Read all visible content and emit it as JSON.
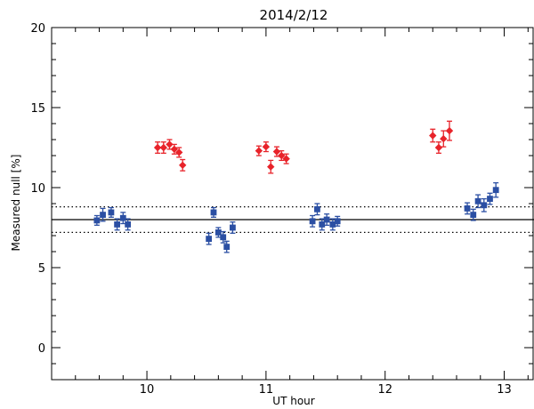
{
  "chart_data": {
    "type": "scatter",
    "title": "2014/2/12",
    "xlabel": "UT hour",
    "ylabel": "Measured null [%]",
    "xlim": [
      9.2,
      13.25
    ],
    "ylim": [
      -2,
      20
    ],
    "x_ticks": [
      10,
      11,
      12,
      13
    ],
    "x_tick_labels": [
      "10",
      "11",
      "12",
      "13"
    ],
    "y_ticks": [
      0,
      5,
      10,
      15,
      20
    ],
    "y_tick_labels": [
      "0",
      "5",
      "10",
      "15",
      "20"
    ],
    "grid": false,
    "reference_lines": [
      {
        "y": 8.0,
        "style": "solid"
      },
      {
        "y": 8.8,
        "style": "dotted"
      },
      {
        "y": 7.2,
        "style": "dotted"
      }
    ],
    "series": [
      {
        "color": "#e8232a",
        "marker": "diamond",
        "points": [
          {
            "x": 10.09,
            "y": 12.5,
            "err": 0.35
          },
          {
            "x": 10.14,
            "y": 12.5,
            "err": 0.35
          },
          {
            "x": 10.19,
            "y": 12.7,
            "err": 0.3
          },
          {
            "x": 10.23,
            "y": 12.4,
            "err": 0.3
          },
          {
            "x": 10.27,
            "y": 12.2,
            "err": 0.3
          },
          {
            "x": 10.3,
            "y": 11.4,
            "err": 0.35
          },
          {
            "x": 10.94,
            "y": 12.3,
            "err": 0.3
          },
          {
            "x": 11.0,
            "y": 12.55,
            "err": 0.3
          },
          {
            "x": 11.04,
            "y": 11.3,
            "err": 0.4
          },
          {
            "x": 11.09,
            "y": 12.25,
            "err": 0.3
          },
          {
            "x": 11.13,
            "y": 12.0,
            "err": 0.3
          },
          {
            "x": 11.17,
            "y": 11.8,
            "err": 0.3
          },
          {
            "x": 12.4,
            "y": 13.25,
            "err": 0.4
          },
          {
            "x": 12.45,
            "y": 12.5,
            "err": 0.35
          },
          {
            "x": 12.49,
            "y": 13.05,
            "err": 0.5
          },
          {
            "x": 12.54,
            "y": 13.55,
            "err": 0.6
          }
        ]
      },
      {
        "color": "#2b4fa3",
        "marker": "square",
        "points": [
          {
            "x": 9.58,
            "y": 7.95,
            "err": 0.3
          },
          {
            "x": 9.63,
            "y": 8.3,
            "err": 0.4
          },
          {
            "x": 9.7,
            "y": 8.45,
            "err": 0.3
          },
          {
            "x": 9.75,
            "y": 7.7,
            "err": 0.35
          },
          {
            "x": 9.8,
            "y": 8.1,
            "err": 0.35
          },
          {
            "x": 9.84,
            "y": 7.7,
            "err": 0.35
          },
          {
            "x": 10.52,
            "y": 6.8,
            "err": 0.35
          },
          {
            "x": 10.56,
            "y": 8.45,
            "err": 0.3
          },
          {
            "x": 10.6,
            "y": 7.2,
            "err": 0.3
          },
          {
            "x": 10.64,
            "y": 6.9,
            "err": 0.35
          },
          {
            "x": 10.67,
            "y": 6.3,
            "err": 0.35
          },
          {
            "x": 10.72,
            "y": 7.5,
            "err": 0.35
          },
          {
            "x": 11.39,
            "y": 7.9,
            "err": 0.35
          },
          {
            "x": 11.43,
            "y": 8.65,
            "err": 0.35
          },
          {
            "x": 11.47,
            "y": 7.7,
            "err": 0.35
          },
          {
            "x": 11.51,
            "y": 8.0,
            "err": 0.35
          },
          {
            "x": 11.56,
            "y": 7.7,
            "err": 0.35
          },
          {
            "x": 11.6,
            "y": 7.9,
            "err": 0.3
          },
          {
            "x": 12.69,
            "y": 8.7,
            "err": 0.35
          },
          {
            "x": 12.74,
            "y": 8.3,
            "err": 0.35
          },
          {
            "x": 12.78,
            "y": 9.15,
            "err": 0.4
          },
          {
            "x": 12.83,
            "y": 8.9,
            "err": 0.4
          },
          {
            "x": 12.88,
            "y": 9.3,
            "err": 0.35
          },
          {
            "x": 12.93,
            "y": 9.85,
            "err": 0.45
          }
        ]
      }
    ]
  }
}
